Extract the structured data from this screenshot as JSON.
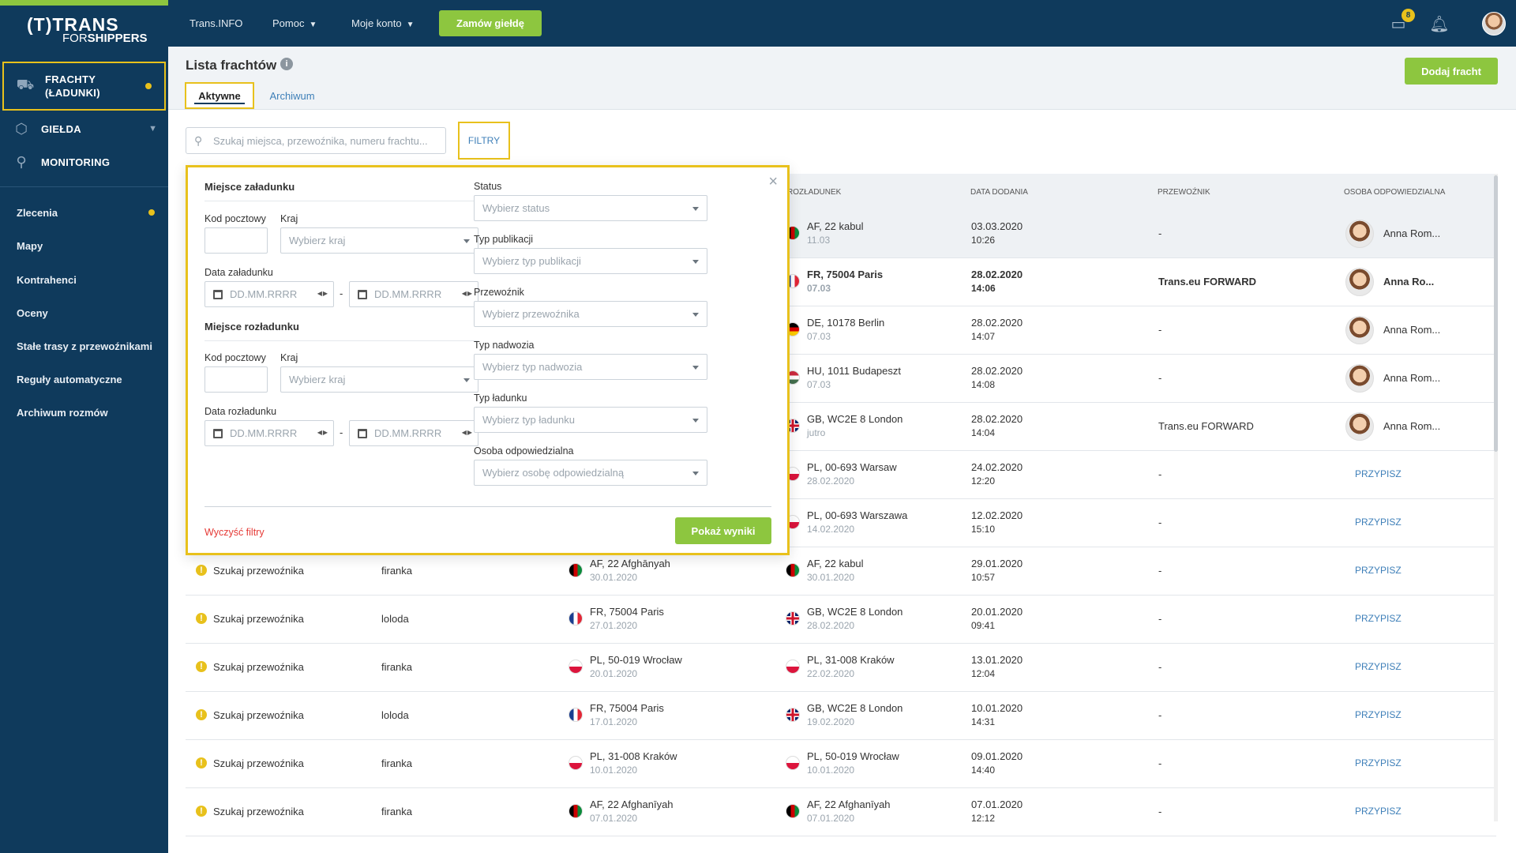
{
  "topbar": {
    "links": [
      "Trans.INFO",
      "Pomoc",
      "Moje konto"
    ],
    "order_button": "Zamów giełdę",
    "messages_badge": "8"
  },
  "logo": {
    "line1": "(T)TRANS",
    "line2_a": "FOR",
    "line2_b": "SHIPPERS"
  },
  "sidebar": {
    "main": [
      {
        "label": "FRACHTY (ŁADUNKI)",
        "icon": "cargo-icon"
      },
      {
        "label": "GIEŁDA",
        "icon": "box-icon"
      },
      {
        "label": "MONITORING",
        "icon": "satellite-icon"
      }
    ],
    "sub": [
      "Zlecenia",
      "Mapy",
      "Kontrahenci",
      "Oceny",
      "Stałe trasy z przewoźnikami",
      "Reguły automatyczne",
      "Archiwum rozmów"
    ]
  },
  "header": {
    "title": "Lista frachtów",
    "add_button": "Dodaj fracht",
    "tabs": [
      "Aktywne",
      "Archiwum"
    ]
  },
  "search": {
    "placeholder": "Szukaj miejsca, przewoźnika, numeru frachtu..."
  },
  "filters_button": "FILTRY",
  "table": {
    "headers": [
      "ROZŁADUNEK",
      "DATA DODANIA",
      "PRZEWOŹNIK",
      "OSOBA ODPOWIEDZIALNA"
    ],
    "assign_label": "PRZYPISZ",
    "rows": [
      {
        "status": "",
        "body": "",
        "load_city": "",
        "load_date": "",
        "unload_flag": "af",
        "unload_city": "AF, 22 kabul",
        "unload_date": "11.03",
        "added_date": "03.03.2020",
        "added_time": "10:26",
        "carrier": "-",
        "person": "Anna Rom...",
        "highlight": true,
        "bold": false
      },
      {
        "status": "",
        "body": "",
        "load_city": "",
        "load_date": "",
        "unload_flag": "fr",
        "unload_city": "FR, 75004 Paris",
        "unload_date": "07.03",
        "added_date": "28.02.2020",
        "added_time": "14:06",
        "carrier": "Trans.eu FORWARD",
        "person": "Anna Ro...",
        "highlight": false,
        "bold": true
      },
      {
        "status": "",
        "body": "",
        "load_city": "",
        "load_date": "",
        "unload_flag": "de",
        "unload_city": "DE, 10178 Berlin",
        "unload_date": "07.03",
        "added_date": "28.02.2020",
        "added_time": "14:07",
        "carrier": "-",
        "person": "Anna Rom...",
        "highlight": false,
        "bold": false
      },
      {
        "status": "",
        "body": "",
        "load_city": "",
        "load_date": "",
        "unload_flag": "hu",
        "unload_city": "HU, 1011 Budapeszt",
        "unload_date": "07.03",
        "added_date": "28.02.2020",
        "added_time": "14:08",
        "carrier": "-",
        "person": "Anna Rom...",
        "highlight": false,
        "bold": false
      },
      {
        "status": "",
        "body": "",
        "load_city": "",
        "load_date": "",
        "unload_flag": "gb",
        "unload_city": "GB, WC2E 8 London",
        "unload_date": "jutro",
        "added_date": "28.02.2020",
        "added_time": "14:04",
        "carrier": "Trans.eu FORWARD",
        "person": "Anna Rom...",
        "highlight": false,
        "bold": false
      },
      {
        "status": "",
        "body": "",
        "load_city": "",
        "load_date": "",
        "unload_flag": "pl",
        "unload_city": "PL, 00-693 Warsaw",
        "unload_date": "28.02.2020",
        "added_date": "24.02.2020",
        "added_time": "12:20",
        "carrier": "-",
        "person": "",
        "highlight": false,
        "bold": false
      },
      {
        "status": "",
        "body": "",
        "load_city": "",
        "load_date": "",
        "unload_flag": "pl",
        "unload_city": "PL, 00-693 Warszawa",
        "unload_date": "14.02.2020",
        "added_date": "12.02.2020",
        "added_time": "15:10",
        "carrier": "-",
        "person": "",
        "highlight": false,
        "bold": false
      },
      {
        "status": "Szukaj przewoźnika",
        "body": "firanka",
        "load_flag": "af",
        "load_city": "AF, 22 Afghānyah",
        "load_date": "30.01.2020",
        "unload_flag": "af",
        "unload_city": "AF, 22 kabul",
        "unload_date": "30.01.2020",
        "added_date": "29.01.2020",
        "added_time": "10:57",
        "carrier": "-",
        "person": "",
        "highlight": false,
        "bold": false
      },
      {
        "status": "Szukaj przewoźnika",
        "body": "loloda",
        "load_flag": "fr",
        "load_city": "FR, 75004 Paris",
        "load_date": "27.01.2020",
        "unload_flag": "gb",
        "unload_city": "GB, WC2E 8 London",
        "unload_date": "28.02.2020",
        "added_date": "20.01.2020",
        "added_time": "09:41",
        "carrier": "-",
        "person": "",
        "highlight": false,
        "bold": false
      },
      {
        "status": "Szukaj przewoźnika",
        "body": "firanka",
        "load_flag": "pl",
        "load_city": "PL, 50-019 Wrocław",
        "load_date": "20.01.2020",
        "unload_flag": "pl",
        "unload_city": "PL, 31-008 Kraków",
        "unload_date": "22.02.2020",
        "added_date": "13.01.2020",
        "added_time": "12:04",
        "carrier": "-",
        "person": "",
        "highlight": false,
        "bold": false
      },
      {
        "status": "Szukaj przewoźnika",
        "body": "loloda",
        "load_flag": "fr",
        "load_city": "FR, 75004 Paris",
        "load_date": "17.01.2020",
        "unload_flag": "gb",
        "unload_city": "GB, WC2E 8 London",
        "unload_date": "19.02.2020",
        "added_date": "10.01.2020",
        "added_time": "14:31",
        "carrier": "-",
        "person": "",
        "highlight": false,
        "bold": false
      },
      {
        "status": "Szukaj przewoźnika",
        "body": "firanka",
        "load_flag": "pl",
        "load_city": "PL, 31-008 Kraków",
        "load_date": "10.01.2020",
        "unload_flag": "pl",
        "unload_city": "PL, 50-019 Wrocław",
        "unload_date": "10.01.2020",
        "added_date": "09.01.2020",
        "added_time": "14:40",
        "carrier": "-",
        "person": "",
        "highlight": false,
        "bold": false
      },
      {
        "status": "Szukaj przewoźnika",
        "body": "firanka",
        "load_flag": "af",
        "load_city": "AF, 22 Afghanīyah",
        "load_date": "07.01.2020",
        "unload_flag": "af",
        "unload_city": "AF, 22 Afghanīyah",
        "unload_date": "07.01.2020",
        "added_date": "07.01.2020",
        "added_time": "12:12",
        "carrier": "-",
        "person": "",
        "highlight": false,
        "bold": false
      }
    ]
  },
  "filter_panel": {
    "loading_section": "Miejsce załadunku",
    "unloading_section": "Miejsce rozładunku",
    "postal_code_label": "Kod pocztowy",
    "country_label": "Kraj",
    "country_placeholder": "Wybierz kraj",
    "loading_date_label": "Data załadunku",
    "unloading_date_label": "Data rozładunku",
    "date_placeholder": "DD.MM.RRRR",
    "dash": "-",
    "right_fields": [
      {
        "label": "Status",
        "placeholder": "Wybierz status"
      },
      {
        "label": "Typ publikacji",
        "placeholder": "Wybierz typ publikacji"
      },
      {
        "label": "Przewoźnik",
        "placeholder": "Wybierz przewoźnika"
      },
      {
        "label": "Typ nadwozia",
        "placeholder": "Wybierz typ nadwozia"
      },
      {
        "label": "Typ ładunku",
        "placeholder": "Wybierz typ ładunku"
      },
      {
        "label": "Osoba odpowiedzialna",
        "placeholder": "Wybierz osobę odpowiedzialną"
      }
    ],
    "clear_label": "Wyczyść filtry",
    "show_button": "Pokaż wyniki"
  }
}
